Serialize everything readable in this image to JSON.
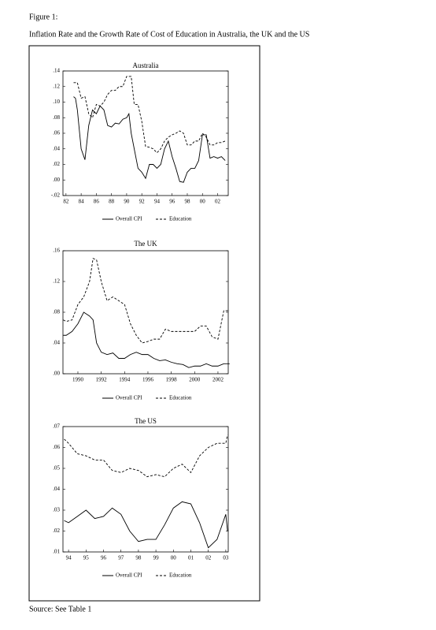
{
  "header": {
    "figure_label": "Figure 1:",
    "caption": "Inflation Rate and the Growth Rate of Cost of Education in Australia, the UK and the US"
  },
  "source": "Source:  See Table 1",
  "chart_data": [
    {
      "type": "line",
      "title": "Australia",
      "x": [
        1983,
        1983.25,
        1983.5,
        1984,
        1984.5,
        1985,
        1985.5,
        1986,
        1986.5,
        1987,
        1987.5,
        1988,
        1988.5,
        1989,
        1989.5,
        1990,
        1990.3,
        1990.6,
        1991,
        1991.5,
        1992,
        1992.5,
        1993,
        1993.5,
        1994,
        1994.5,
        1995,
        1995.5,
        1996,
        1996.5,
        1997,
        1997.5,
        1998,
        1998.5,
        1999,
        1999.5,
        2000,
        2000.5,
        2001,
        2001.5,
        2002,
        2002.5,
        2003
      ],
      "series": [
        {
          "name": "Overall CPI",
          "color": "#000000",
          "dash": "solid",
          "values": [
            0.107,
            0.105,
            0.09,
            0.04,
            0.026,
            0.07,
            0.09,
            0.085,
            0.095,
            0.09,
            0.07,
            0.068,
            0.073,
            0.072,
            0.078,
            0.08,
            0.085,
            0.06,
            0.04,
            0.015,
            0.01,
            0.002,
            0.02,
            0.02,
            0.015,
            0.02,
            0.04,
            0.05,
            0.03,
            0.015,
            -0.002,
            -0.003,
            0.01,
            0.015,
            0.015,
            0.025,
            0.058,
            0.058,
            0.028,
            0.03,
            0.028,
            0.03,
            0.025
          ]
        },
        {
          "name": "Education",
          "color": "#000000",
          "dash": "dashed",
          "values": [
            0.125,
            0.125,
            0.125,
            0.105,
            0.107,
            0.085,
            0.08,
            0.097,
            0.095,
            0.1,
            0.11,
            0.115,
            0.115,
            0.12,
            0.12,
            0.133,
            0.133,
            0.133,
            0.097,
            0.097,
            0.075,
            0.043,
            0.042,
            0.04,
            0.035,
            0.04,
            0.05,
            0.055,
            0.058,
            0.06,
            0.063,
            0.06,
            0.045,
            0.045,
            0.05,
            0.05,
            0.06,
            0.055,
            0.045,
            0.045,
            0.048,
            0.048,
            0.05
          ]
        }
      ],
      "xlim": [
        1981.6,
        2003.4
      ],
      "xticks": [
        {
          "value": 1982,
          "label": "82"
        },
        {
          "value": 1984,
          "label": "84"
        },
        {
          "value": 1986,
          "label": "86"
        },
        {
          "value": 1988,
          "label": "88"
        },
        {
          "value": 1990,
          "label": "90"
        },
        {
          "value": 1992,
          "label": "92"
        },
        {
          "value": 1994,
          "label": "94"
        },
        {
          "value": 1996,
          "label": "96"
        },
        {
          "value": 1998,
          "label": "98"
        },
        {
          "value": 2000,
          "label": "00"
        },
        {
          "value": 2002,
          "label": "02"
        }
      ],
      "ylim": [
        -0.02,
        0.14
      ],
      "yticks": [
        {
          "value": -0.02,
          "label": "-.02"
        },
        {
          "value": 0,
          "label": ".00"
        },
        {
          "value": 0.02,
          "label": ".02"
        },
        {
          "value": 0.04,
          "label": ".04"
        },
        {
          "value": 0.06,
          "label": ".06"
        },
        {
          "value": 0.08,
          "label": ".08"
        },
        {
          "value": 0.1,
          "label": ".10"
        },
        {
          "value": 0.12,
          "label": ".12"
        },
        {
          "value": 0.14,
          "label": ".14"
        }
      ],
      "grid": false
    },
    {
      "type": "line",
      "title": "The UK",
      "x": [
        1988.75,
        1989,
        1989.5,
        1990,
        1990.5,
        1991,
        1991.3,
        1991.6,
        1992,
        1992.5,
        1993,
        1993.5,
        1994,
        1994.5,
        1995,
        1995.5,
        1996,
        1996.5,
        1997,
        1997.5,
        1998,
        1998.5,
        1999,
        1999.5,
        2000,
        2000.5,
        2001,
        2001.5,
        2002,
        2002.5,
        2003
      ],
      "series": [
        {
          "name": "Overall CPI",
          "color": "#000000",
          "dash": "solid",
          "values": [
            0.05,
            0.05,
            0.055,
            0.065,
            0.08,
            0.075,
            0.07,
            0.04,
            0.028,
            0.025,
            0.027,
            0.02,
            0.02,
            0.025,
            0.028,
            0.025,
            0.025,
            0.02,
            0.017,
            0.018,
            0.015,
            0.013,
            0.012,
            0.008,
            0.01,
            0.01,
            0.013,
            0.01,
            0.01,
            0.013,
            0.013
          ]
        },
        {
          "name": "Education",
          "color": "#000000",
          "dash": "dashed",
          "values": [
            0.07,
            0.068,
            0.07,
            0.09,
            0.1,
            0.12,
            0.15,
            0.148,
            0.12,
            0.095,
            0.1,
            0.095,
            0.09,
            0.065,
            0.05,
            0.04,
            0.042,
            0.045,
            0.045,
            0.058,
            0.055,
            0.055,
            0.055,
            0.055,
            0.055,
            0.062,
            0.062,
            0.048,
            0.045,
            0.082,
            0.082
          ]
        }
      ],
      "xlim": [
        1988.72,
        2002.88
      ],
      "xticks": [
        1990,
        1992,
        1994,
        1996,
        1998,
        2000,
        2002
      ],
      "ylim": [
        0,
        0.16
      ],
      "yticks": [
        {
          "value": 0,
          "label": ".00"
        },
        {
          "value": 0.04,
          "label": ".04"
        },
        {
          "value": 0.08,
          "label": ".08"
        },
        {
          "value": 0.12,
          "label": ".12"
        },
        {
          "value": 0.16,
          "label": ".16"
        }
      ],
      "grid": false
    },
    {
      "type": "line",
      "title": "The US",
      "x": [
        1993.75,
        1994,
        1994.5,
        1995,
        1995.5,
        1996,
        1996.5,
        1997,
        1997.5,
        1998,
        1998.5,
        1999,
        1999.5,
        2000,
        2000.5,
        2001,
        2001.5,
        2002,
        2002.5,
        2003,
        2003.1
      ],
      "series": [
        {
          "name": "Overall CPI",
          "color": "#000000",
          "dash": "solid",
          "values": [
            0.025,
            0.024,
            0.027,
            0.03,
            0.026,
            0.027,
            0.031,
            0.028,
            0.02,
            0.015,
            0.016,
            0.016,
            0.023,
            0.031,
            0.034,
            0.033,
            0.024,
            0.012,
            0.016,
            0.028,
            0.02
          ]
        },
        {
          "name": "Education",
          "color": "#000000",
          "dash": "dashed",
          "values": [
            0.064,
            0.062,
            0.057,
            0.056,
            0.054,
            0.054,
            0.049,
            0.048,
            0.05,
            0.049,
            0.046,
            0.047,
            0.046,
            0.05,
            0.052,
            0.048,
            0.056,
            0.06,
            0.062,
            0.062,
            0.066
          ]
        }
      ],
      "xlim": [
        1993.68,
        2003.14
      ],
      "xticks": [
        {
          "value": 1994,
          "label": "94"
        },
        {
          "value": 1995,
          "label": "95"
        },
        {
          "value": 1996,
          "label": "96"
        },
        {
          "value": 1997,
          "label": "97"
        },
        {
          "value": 1998,
          "label": "98"
        },
        {
          "value": 1999,
          "label": "99"
        },
        {
          "value": 2000,
          "label": "00"
        },
        {
          "value": 2001,
          "label": "01"
        },
        {
          "value": 2002,
          "label": "02"
        },
        {
          "value": 2003,
          "label": "03"
        }
      ],
      "ylim": [
        0.01,
        0.07
      ],
      "yticks": [
        {
          "value": 0.01,
          "label": ".01"
        },
        {
          "value": 0.02,
          "label": ".02"
        },
        {
          "value": 0.03,
          "label": ".03"
        },
        {
          "value": 0.04,
          "label": ".04"
        },
        {
          "value": 0.05,
          "label": ".05"
        },
        {
          "value": 0.06,
          "label": ".06"
        },
        {
          "value": 0.07,
          "label": ".07"
        }
      ],
      "grid": false
    }
  ]
}
